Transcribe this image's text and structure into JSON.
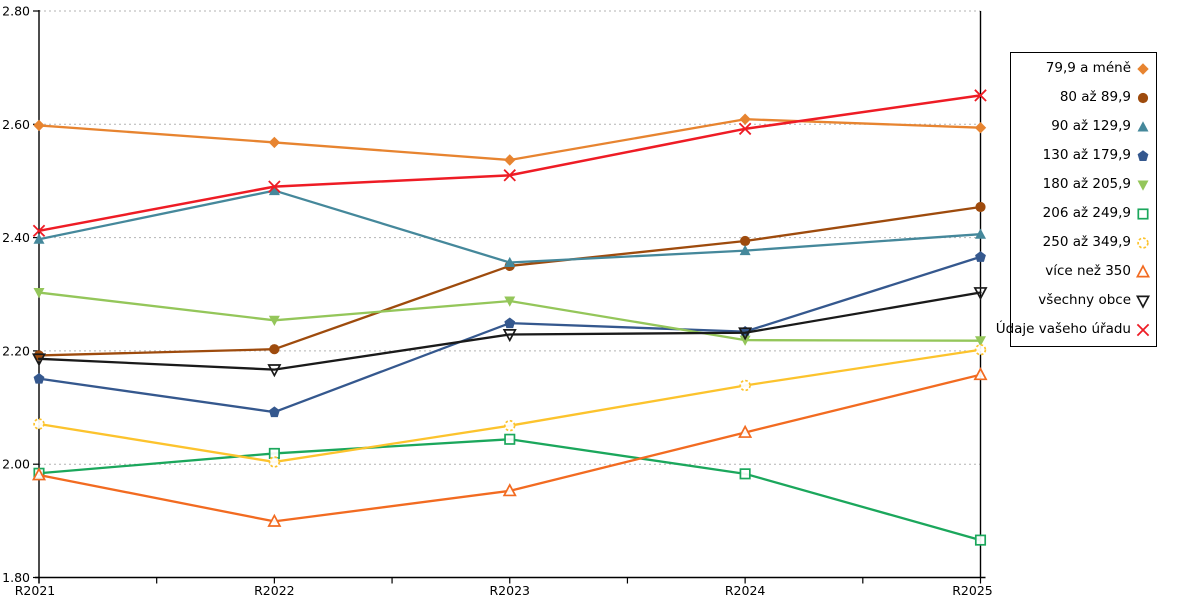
{
  "chart_data": {
    "type": "line",
    "title": "",
    "xlabel": "",
    "ylabel": "",
    "x_categories": [
      "R2021",
      "R2022",
      "R2023",
      "R2024",
      "R2025"
    ],
    "y_axis": {
      "min": 1.8,
      "max": 2.8,
      "step": 0.2,
      "tick_labels": [
        "1.80",
        "2.00",
        "2.20",
        "2.40",
        "2.60",
        "2.80"
      ]
    },
    "grid": "horizontal dashed gray",
    "legend_position": "right",
    "colors": {
      "grid": "#b3b3b3",
      "axis": "#000000"
    },
    "series": [
      {
        "name": "79,9 a méně",
        "marker": "diamond",
        "color": "#E78430",
        "line_width": 2.3,
        "values": [
          2.598,
          2.568,
          2.537,
          2.609,
          2.594
        ]
      },
      {
        "name": "80 až 89,9",
        "marker": "circle",
        "color": "#9E4B0D",
        "line_width": 2.3,
        "values": [
          2.192,
          2.203,
          2.35,
          2.394,
          2.454
        ]
      },
      {
        "name": "90 až 129,9",
        "marker": "triangle-up",
        "color": "#45889B",
        "line_width": 2.3,
        "values": [
          2.397,
          2.483,
          2.356,
          2.377,
          2.406
        ]
      },
      {
        "name": "130 až 179,9",
        "marker": "pentagon",
        "color": "#35588E",
        "line_width": 2.3,
        "values": [
          2.151,
          2.092,
          2.249,
          2.234,
          2.366
        ]
      },
      {
        "name": "180 až 205,9",
        "marker": "triangle-down",
        "color": "#94C65A",
        "line_width": 2.3,
        "values": [
          2.303,
          2.254,
          2.288,
          2.219,
          2.218
        ]
      },
      {
        "name": "206 až 249,9",
        "marker": "square-open",
        "color": "#1BA75C",
        "line_width": 2.3,
        "values": [
          1.984,
          2.019,
          2.044,
          1.983,
          1.866
        ]
      },
      {
        "name": "250 až 349,9",
        "marker": "circle-open-dashed",
        "color": "#FCC32D",
        "line_width": 2.3,
        "values": [
          2.071,
          2.004,
          2.068,
          2.139,
          2.202
        ]
      },
      {
        "name": "více než 350",
        "marker": "triangle-up-open",
        "color": "#F26B21",
        "line_width": 2.3,
        "values": [
          1.981,
          1.899,
          1.953,
          2.056,
          2.158
        ]
      },
      {
        "name": "všechny obce",
        "marker": "triangle-down-open",
        "color": "#1A1A1A",
        "line_width": 2.3,
        "values": [
          2.186,
          2.167,
          2.229,
          2.232,
          2.303
        ]
      },
      {
        "name": "Údaje vašeho úřadu",
        "marker": "x",
        "color": "#EE1C25",
        "line_width": 2.5,
        "values": [
          2.412,
          2.49,
          2.51,
          2.592,
          2.651
        ]
      }
    ]
  }
}
